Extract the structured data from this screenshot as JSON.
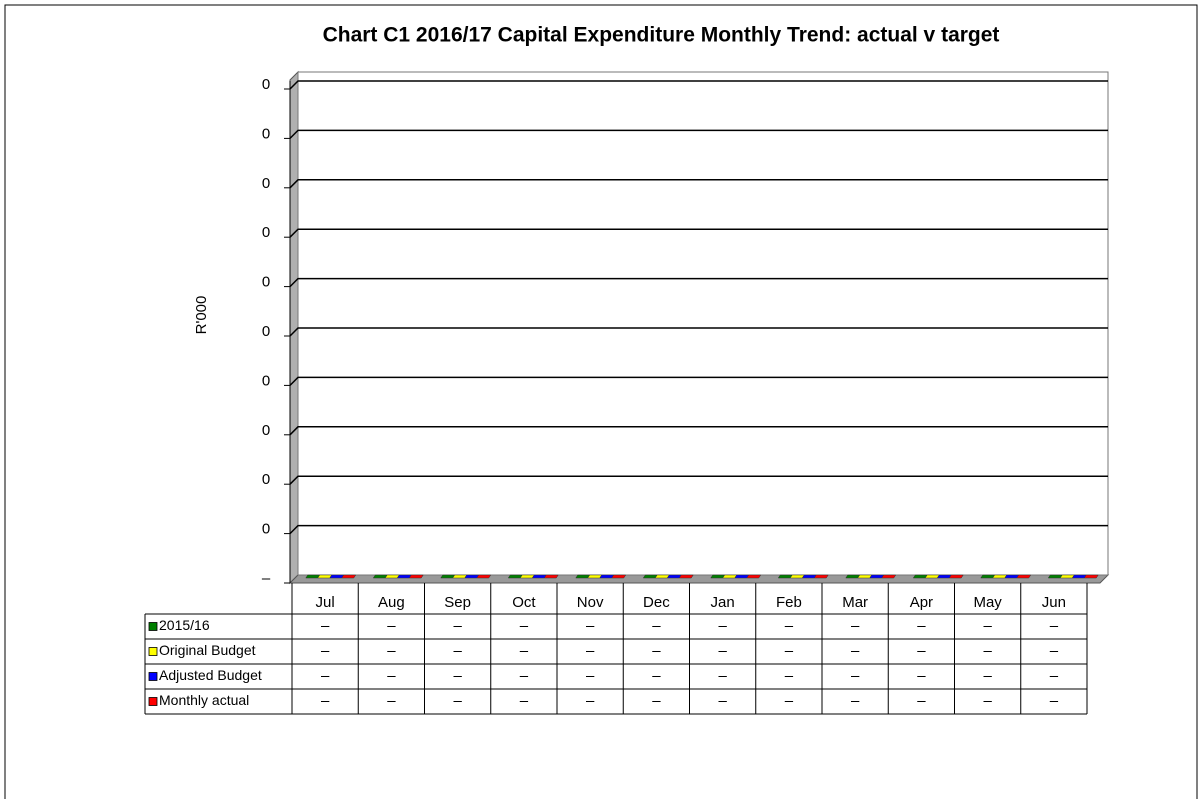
{
  "chart_data": {
    "type": "bar",
    "title": "Chart C1 2016/17 Capital Expenditure Monthly Trend: actual v target",
    "y_label": "R'000",
    "categories": [
      "Jul",
      "Aug",
      "Sep",
      "Oct",
      "Nov",
      "Dec",
      "Jan",
      "Feb",
      "Mar",
      "Apr",
      "May",
      "Jun"
    ],
    "series": [
      {
        "name": "2015/16",
        "color": "#008000",
        "values": [
          0,
          0,
          0,
          0,
          0,
          0,
          0,
          0,
          0,
          0,
          0,
          0
        ],
        "value_labels": [
          "–",
          "–",
          "–",
          "–",
          "–",
          "–",
          "–",
          "–",
          "–",
          "–",
          "–",
          "–"
        ]
      },
      {
        "name": "Original Budget",
        "color": "#ffff00",
        "values": [
          0,
          0,
          0,
          0,
          0,
          0,
          0,
          0,
          0,
          0,
          0,
          0
        ],
        "value_labels": [
          "–",
          "–",
          "–",
          "–",
          "–",
          "–",
          "–",
          "–",
          "–",
          "–",
          "–",
          "–"
        ]
      },
      {
        "name": "Adjusted Budget",
        "color": "#0000ff",
        "values": [
          0,
          0,
          0,
          0,
          0,
          0,
          0,
          0,
          0,
          0,
          0,
          0
        ],
        "value_labels": [
          "–",
          "–",
          "–",
          "–",
          "–",
          "–",
          "–",
          "–",
          "–",
          "–",
          "–",
          "–"
        ]
      },
      {
        "name": "Monthly actual",
        "color": "#ff0000",
        "values": [
          0,
          0,
          0,
          0,
          0,
          0,
          0,
          0,
          0,
          0,
          0,
          0
        ],
        "value_labels": [
          "–",
          "–",
          "–",
          "–",
          "–",
          "–",
          "–",
          "–",
          "–",
          "–",
          "–",
          "–"
        ]
      }
    ],
    "ylim": [
      0,
      1
    ],
    "yticks": [
      {
        "value": 0,
        "label": "–"
      },
      {
        "value": 0.1,
        "label": "0"
      },
      {
        "value": 0.2,
        "label": "0"
      },
      {
        "value": 0.3,
        "label": "0"
      },
      {
        "value": 0.4,
        "label": "0"
      },
      {
        "value": 0.5,
        "label": "0"
      },
      {
        "value": 0.6,
        "label": "0"
      },
      {
        "value": 0.7,
        "label": "0"
      },
      {
        "value": 0.8,
        "label": "0"
      },
      {
        "value": 0.9,
        "label": "0"
      },
      {
        "value": 1.0,
        "label": "0"
      }
    ],
    "grid": true,
    "data_table": true
  }
}
